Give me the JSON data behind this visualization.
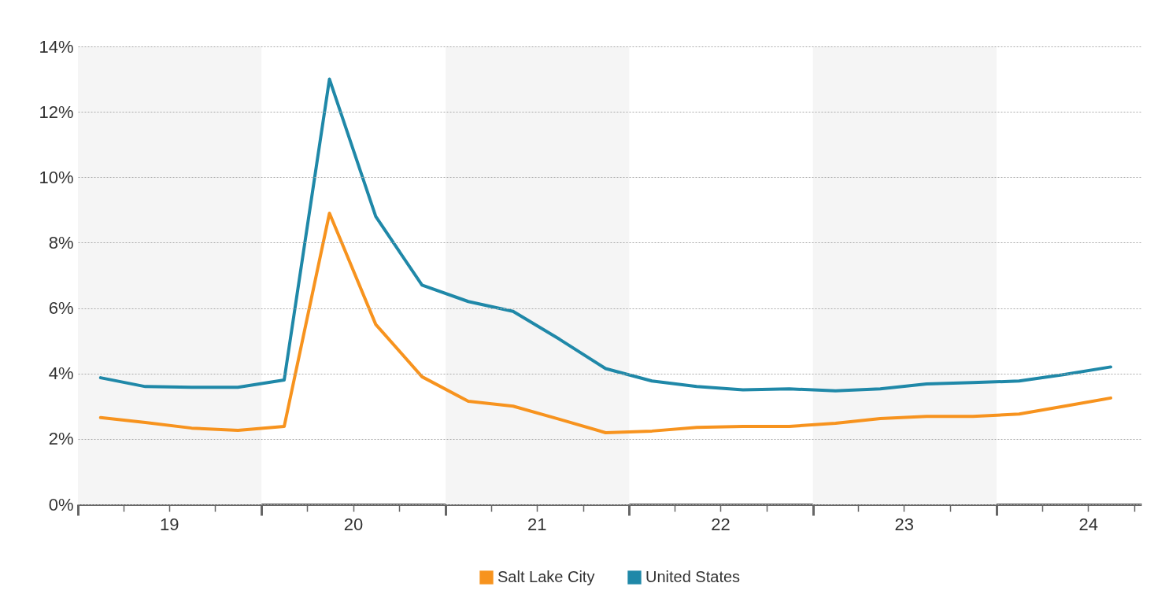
{
  "chart_data": {
    "type": "line",
    "x": [
      "2019-02-15",
      "2019-05-15",
      "2019-08-15",
      "2019-11-15",
      "2020-02-15",
      "2020-05-15",
      "2020-08-15",
      "2020-11-15",
      "2021-02-15",
      "2021-05-15",
      "2021-08-15",
      "2021-11-15",
      "2022-02-15",
      "2022-05-15",
      "2022-08-15",
      "2022-11-15",
      "2023-02-15",
      "2023-05-15",
      "2023-08-15",
      "2023-11-15",
      "2024-02-15",
      "2024-05-15",
      "2024-08-15"
    ],
    "series": [
      {
        "name": "Salt Lake City",
        "color": "#f7931e",
        "values": [
          2.65,
          2.5,
          2.33,
          2.26,
          2.38,
          8.9,
          5.5,
          3.9,
          3.15,
          3.0,
          2.6,
          2.19,
          2.24,
          2.35,
          2.38,
          2.38,
          2.48,
          2.62,
          2.69,
          2.69,
          2.76,
          3.0,
          3.25
        ]
      },
      {
        "name": "United States",
        "color": "#1f88a8",
        "values": [
          3.87,
          3.6,
          3.58,
          3.58,
          3.8,
          13.0,
          8.8,
          6.7,
          6.2,
          5.9,
          5.05,
          4.15,
          3.77,
          3.6,
          3.5,
          3.53,
          3.47,
          3.53,
          3.68,
          3.72,
          3.77,
          3.97,
          4.2
        ]
      }
    ],
    "xlim": [
      "2019-01-01",
      "2024-10-15"
    ],
    "xticks": [
      {
        "value": "2019-01-01",
        "label": null
      },
      {
        "value": "2019-04-01",
        "label": null
      },
      {
        "value": "2019-07-01",
        "label": "19"
      },
      {
        "value": "2019-10-01",
        "label": null
      },
      {
        "value": "2020-01-01",
        "label": null
      },
      {
        "value": "2020-04-01",
        "label": null
      },
      {
        "value": "2020-07-01",
        "label": "20"
      },
      {
        "value": "2020-10-01",
        "label": null
      },
      {
        "value": "2021-01-01",
        "label": null
      },
      {
        "value": "2021-04-01",
        "label": null
      },
      {
        "value": "2021-07-01",
        "label": "21"
      },
      {
        "value": "2021-10-01",
        "label": null
      },
      {
        "value": "2022-01-01",
        "label": null
      },
      {
        "value": "2022-04-01",
        "label": null
      },
      {
        "value": "2022-07-01",
        "label": "22"
      },
      {
        "value": "2022-10-01",
        "label": null
      },
      {
        "value": "2023-01-01",
        "label": null
      },
      {
        "value": "2023-04-01",
        "label": null
      },
      {
        "value": "2023-07-01",
        "label": "23"
      },
      {
        "value": "2023-10-01",
        "label": null
      },
      {
        "value": "2024-01-01",
        "label": null
      },
      {
        "value": "2024-04-01",
        "label": null
      },
      {
        "value": "2024-07-01",
        "label": "24"
      },
      {
        "value": "2024-10-01",
        "label": null
      }
    ],
    "ylim": [
      0,
      14
    ],
    "yticks": [
      {
        "value": 0,
        "label": "0%"
      },
      {
        "value": 2,
        "label": "2%"
      },
      {
        "value": 4,
        "label": "4%"
      },
      {
        "value": 6,
        "label": "6%"
      },
      {
        "value": 8,
        "label": "8%"
      },
      {
        "value": 10,
        "label": "10%"
      },
      {
        "value": 12,
        "label": "12%"
      },
      {
        "value": 14,
        "label": "14%"
      }
    ],
    "bands": [
      {
        "axis": "x",
        "from": "2019-01-01",
        "to": "2020-01-01",
        "color": "#f5f5f5"
      },
      {
        "axis": "x",
        "from": "2021-01-01",
        "to": "2022-01-01",
        "color": "#f5f5f5"
      },
      {
        "axis": "x",
        "from": "2023-01-01",
        "to": "2024-01-01",
        "color": "#f5f5f5"
      }
    ],
    "grid": "y",
    "legend": "bottom"
  }
}
